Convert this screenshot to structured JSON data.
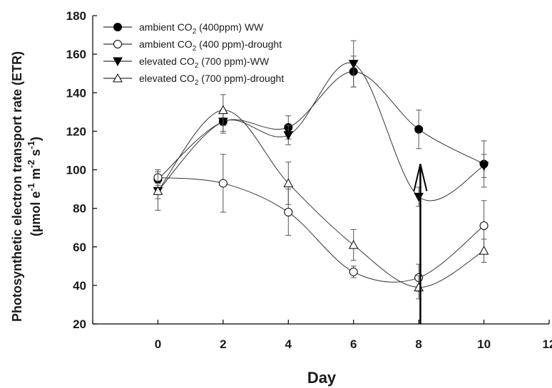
{
  "chart_data": {
    "type": "line",
    "title": "",
    "xlabel": "Day",
    "ylabel": {
      "line1": "Photosynthetic electron transport rate (ETR)",
      "line2_prefix": "(µmol e",
      "line2_sup1": "-1",
      "line2_mid": " m",
      "line2_sup2": "-2",
      "line2_s": " s",
      "line2_sup3": "-1",
      "line2_suffix": ")"
    },
    "xlim": [
      -2,
      12
    ],
    "ylim": [
      20,
      180
    ],
    "xticks": [
      "0",
      "2",
      "4",
      "6",
      "8",
      "10",
      "12"
    ],
    "yticks": [
      "20",
      "40",
      "60",
      "80",
      "100",
      "120",
      "140",
      "160",
      "180"
    ],
    "x": [
      0,
      2,
      4,
      6,
      8,
      10
    ],
    "grid": false,
    "legend_position": "top-left",
    "series": [
      {
        "name": "ambient CO₂ (400ppm) WW",
        "legend": {
          "pre": "ambient CO",
          "sub": "2",
          "post": " (400ppm) WW"
        },
        "marker": "filled-circle",
        "values": [
          95,
          125,
          122,
          151,
          121,
          103
        ],
        "errors": [
          5,
          5,
          6,
          8,
          10,
          12
        ]
      },
      {
        "name": "ambient CO₂ (400 ppm)-drought",
        "legend": {
          "pre": "ambient CO",
          "sub": "2",
          "post": " (400 ppm)-drought"
        },
        "marker": "open-circle",
        "values": [
          96,
          93,
          78,
          47,
          44,
          71
        ],
        "errors": [
          4,
          15,
          12,
          3,
          7,
          13
        ]
      },
      {
        "name": "elevated CO₂ (700 ppm)-WW",
        "legend": {
          "pre": "elevated CO",
          "sub": "2",
          "post": " (700 ppm)-WW"
        },
        "marker": "filled-triangle-down",
        "values": [
          89,
          125,
          118,
          155,
          86,
          102
        ],
        "errors": [
          10,
          6,
          5,
          12,
          5,
          6
        ]
      },
      {
        "name": "elevated CO₂ (700 ppm)-drought",
        "legend": {
          "pre": "elevated CO",
          "sub": "2",
          "post": " (700 ppm)-drought"
        },
        "marker": "open-triangle-up",
        "values": [
          89,
          131,
          93,
          61,
          39,
          58
        ],
        "errors": [
          4,
          8,
          11,
          8,
          6,
          6
        ]
      }
    ],
    "annotation": {
      "type": "arrow",
      "x": 8.05,
      "y_from": 20,
      "y_to": 103,
      "direction": "up"
    }
  }
}
